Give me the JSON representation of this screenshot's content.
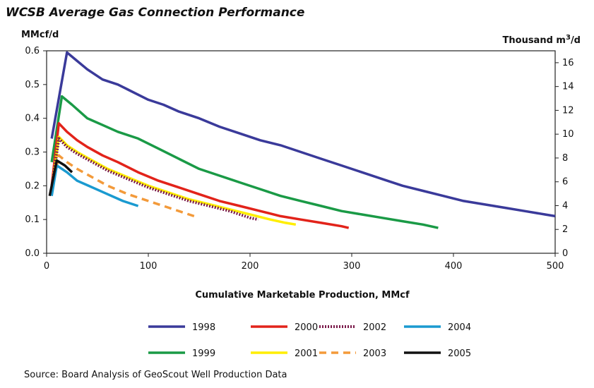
{
  "page": {
    "title": "WCSB Average Gas Connection Performance",
    "source": "Source:  Board Analysis of GeoScout Well Production Data"
  },
  "chart_data": {
    "type": "line",
    "title": "WCSB Average Gas Connection Performance",
    "xlabel": "Cumulative Marketable Production, MMcf",
    "ylabel": "MMcf/d",
    "y2label_prefix": "Thousand m",
    "y2label_sup": "3",
    "y2label_suffix": "/d",
    "xlim": [
      0,
      500
    ],
    "ylim": [
      0,
      0.6
    ],
    "y2lim": [
      0,
      17.0
    ],
    "xticks": [
      0,
      100,
      200,
      300,
      400,
      500
    ],
    "xtick_labels": [
      "0",
      "100",
      "200",
      "300",
      "400",
      "500"
    ],
    "yticks": [
      0.0,
      0.1,
      0.2,
      0.3,
      0.4,
      0.5,
      0.6
    ],
    "ytick_labels": [
      "0.0",
      "0.1",
      "0.2",
      "0.3",
      "0.4",
      "0.5",
      "0.6"
    ],
    "y2ticks": [
      0,
      2,
      4,
      6,
      8,
      10,
      12,
      14,
      16
    ],
    "y2tick_labels": [
      "0",
      "2",
      "4",
      "6",
      "8",
      "10",
      "12",
      "14",
      "16"
    ],
    "grid": false,
    "legend_position": "bottom",
    "series": [
      {
        "name": "1998",
        "color": "#3a3a9a",
        "style": "solid",
        "x": [
          5,
          20,
          30,
          40,
          55,
          70,
          80,
          100,
          115,
          130,
          150,
          170,
          190,
          210,
          230,
          250,
          270,
          290,
          310,
          330,
          350,
          370,
          390,
          410,
          430,
          450,
          470,
          490,
          500
        ],
        "y": [
          0.34,
          0.595,
          0.57,
          0.545,
          0.515,
          0.5,
          0.485,
          0.455,
          0.44,
          0.42,
          0.4,
          0.375,
          0.355,
          0.335,
          0.32,
          0.3,
          0.28,
          0.26,
          0.24,
          0.22,
          0.2,
          0.185,
          0.17,
          0.155,
          0.145,
          0.135,
          0.125,
          0.115,
          0.11
        ]
      },
      {
        "name": "1999",
        "color": "#1a9a46",
        "style": "solid",
        "x": [
          5,
          15,
          25,
          40,
          55,
          70,
          90,
          110,
          130,
          150,
          170,
          190,
          210,
          230,
          250,
          270,
          290,
          310,
          330,
          350,
          370,
          385
        ],
        "y": [
          0.27,
          0.465,
          0.44,
          0.4,
          0.38,
          0.36,
          0.34,
          0.31,
          0.28,
          0.25,
          0.23,
          0.21,
          0.19,
          0.17,
          0.155,
          0.14,
          0.125,
          0.115,
          0.105,
          0.095,
          0.085,
          0.075
        ]
      },
      {
        "name": "2000",
        "color": "#e2231a",
        "style": "solid",
        "x": [
          5,
          12,
          20,
          30,
          40,
          55,
          70,
          90,
          110,
          130,
          150,
          170,
          190,
          210,
          230,
          250,
          270,
          290,
          297
        ],
        "y": [
          0.2,
          0.385,
          0.36,
          0.335,
          0.315,
          0.29,
          0.27,
          0.24,
          0.215,
          0.195,
          0.175,
          0.155,
          0.14,
          0.125,
          0.11,
          0.1,
          0.09,
          0.08,
          0.075
        ]
      },
      {
        "name": "2001",
        "color": "#ffee00",
        "style": "solid",
        "x": [
          5,
          12,
          20,
          30,
          45,
          60,
          80,
          100,
          120,
          140,
          160,
          180,
          200,
          220,
          235,
          245
        ],
        "y": [
          0.19,
          0.345,
          0.32,
          0.3,
          0.275,
          0.25,
          0.225,
          0.2,
          0.18,
          0.16,
          0.145,
          0.13,
          0.115,
          0.1,
          0.09,
          0.085
        ]
      },
      {
        "name": "2002",
        "color": "#7a1a4a",
        "style": "dotted",
        "x": [
          5,
          12,
          20,
          30,
          45,
          60,
          80,
          100,
          120,
          140,
          160,
          180,
          200,
          208
        ],
        "y": [
          0.19,
          0.34,
          0.315,
          0.295,
          0.27,
          0.245,
          0.22,
          0.195,
          0.175,
          0.155,
          0.14,
          0.125,
          0.105,
          0.1
        ]
      },
      {
        "name": "2003",
        "color": "#f39a3a",
        "style": "dashed",
        "x": [
          5,
          12,
          20,
          30,
          45,
          60,
          80,
          100,
          120,
          140,
          145
        ],
        "y": [
          0.18,
          0.29,
          0.27,
          0.25,
          0.225,
          0.2,
          0.175,
          0.155,
          0.135,
          0.115,
          0.11
        ]
      },
      {
        "name": "2004",
        "color": "#1a9ad0",
        "style": "solid",
        "x": [
          5,
          10,
          20,
          30,
          45,
          60,
          75,
          90
        ],
        "y": [
          0.17,
          0.26,
          0.24,
          0.215,
          0.195,
          0.175,
          0.155,
          0.14
        ]
      },
      {
        "name": "2005",
        "color": "#111111",
        "style": "solid",
        "x": [
          3,
          10,
          18,
          25
        ],
        "y": [
          0.17,
          0.275,
          0.26,
          0.24
        ]
      }
    ]
  }
}
